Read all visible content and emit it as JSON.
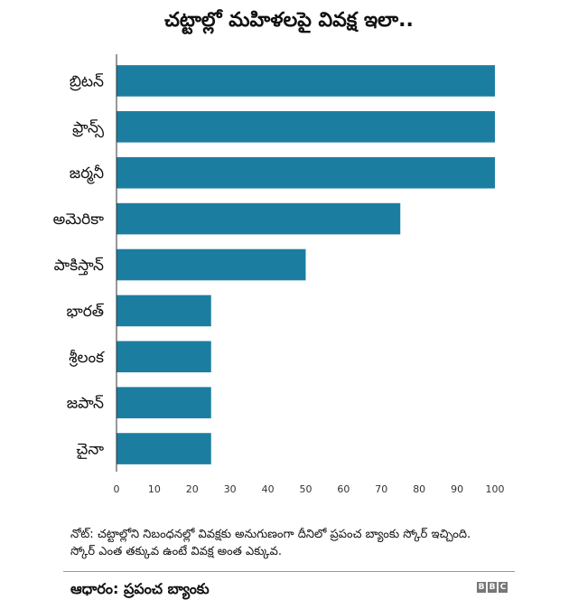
{
  "chart_data": {
    "type": "bar",
    "orientation": "horizontal",
    "title": "చట్టాల్లో మహిళలపై వివక్ష ఇలా..",
    "categories": [
      "బ్రిటన్",
      "ఫ్రాన్స్",
      "జర్మనీ",
      "అమెరికా",
      "పాకిస్తాన్",
      "భారత్",
      "శ్రీలంక",
      "జపాన్",
      "చైనా"
    ],
    "values": [
      100,
      100,
      100,
      75,
      50,
      25,
      25,
      25,
      25
    ],
    "xlim": [
      0,
      100
    ],
    "xticks": [
      0,
      10,
      20,
      30,
      40,
      50,
      60,
      70,
      80,
      90,
      100
    ],
    "bar_color": "#1b7ea1",
    "grid": false
  },
  "note": "నోట్: చట్టాల్లోని నిబంధనల్లో వివక్షకు అనుగుణంగా దీనిలో ప్రపంచ బ్యాంకు స్కోర్ ఇచ్చింది. స్కోర్ ఎంత తక్కువ ఉంటే వివక్ష అంత ఎక్కువ.",
  "source": "ఆధారం: ప్రపంచ బ్యాంకు",
  "logo": [
    "B",
    "B",
    "C"
  ]
}
